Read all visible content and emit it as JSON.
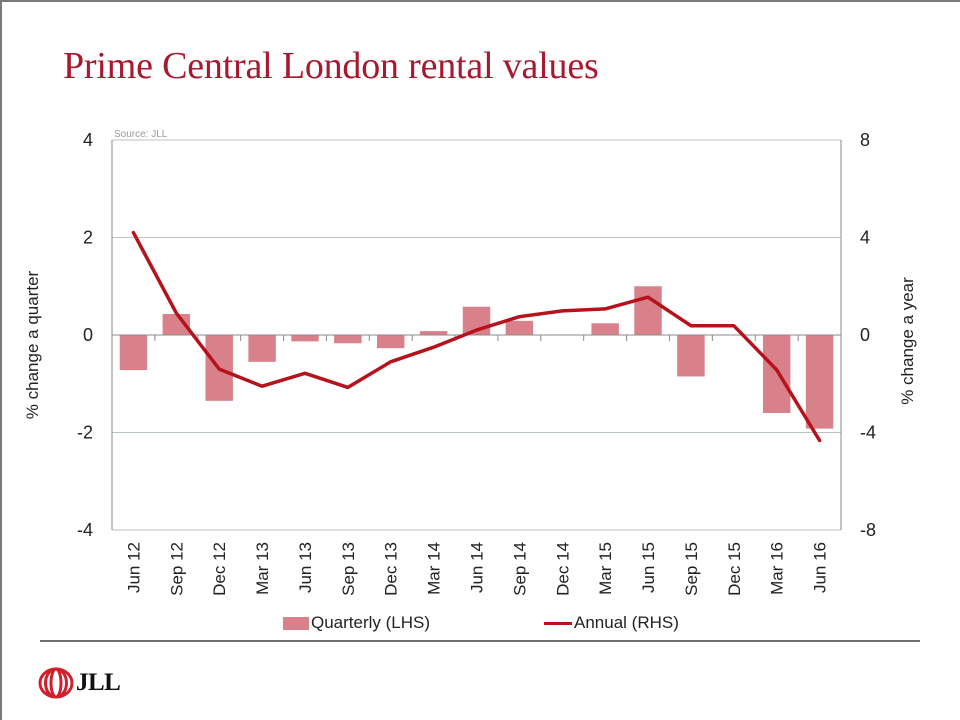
{
  "slide": {
    "title": "Prime Central London rental values",
    "source": "Source: JLL",
    "logo_text": "JLL"
  },
  "colors": {
    "title": "#a6192e",
    "bar": "#d9818a",
    "line": "#b5121b",
    "grid": "#b8c4c4",
    "axis": "#8a8a8a"
  },
  "chart_data": {
    "type": "bar+line",
    "title": "Prime Central London rental values",
    "source": "Source: JLL",
    "categories": [
      "Jun 12",
      "Sep 12",
      "Dec 12",
      "Mar 13",
      "Jun 13",
      "Sep 13",
      "Dec 13",
      "Mar 14",
      "Jun 14",
      "Sep 14",
      "Dec 14",
      "Mar 15",
      "Jun 15",
      "Sep 15",
      "Dec 15",
      "Mar 16",
      "Jun 16"
    ],
    "series": [
      {
        "name": "Quarterly (LHS)",
        "type": "bar",
        "axis": "left",
        "values": [
          -0.72,
          0.43,
          -1.35,
          -0.55,
          -0.13,
          -0.17,
          -0.27,
          0.08,
          0.58,
          0.29,
          0.0,
          0.24,
          1.0,
          -0.85,
          0.0,
          -1.6,
          -1.92
        ]
      },
      {
        "name": "Annual (RHS)",
        "type": "line",
        "axis": "right",
        "values": [
          4.2,
          0.9,
          -1.4,
          -2.1,
          -1.57,
          -2.15,
          -1.1,
          -0.5,
          0.2,
          0.75,
          0.99,
          1.07,
          1.55,
          0.38,
          0.38,
          -1.43,
          -4.33
        ]
      }
    ],
    "left_axis": {
      "label": "% change a quarter",
      "ylim": [
        -4,
        4
      ],
      "ticks": [
        "4",
        "2",
        "0",
        "-2",
        "-4"
      ],
      "tick_values": [
        4,
        2,
        0,
        -2,
        -4
      ]
    },
    "right_axis": {
      "label": "% change a year",
      "ylim": [
        -8,
        8
      ],
      "ticks": [
        "8",
        "4",
        "0",
        "-4",
        "-8"
      ],
      "tick_values": [
        8,
        4,
        0,
        -4,
        -8
      ]
    },
    "grid": true,
    "legend": {
      "placement": "bottom",
      "entries": [
        "Quarterly (LHS)",
        "Annual (RHS)"
      ]
    }
  }
}
